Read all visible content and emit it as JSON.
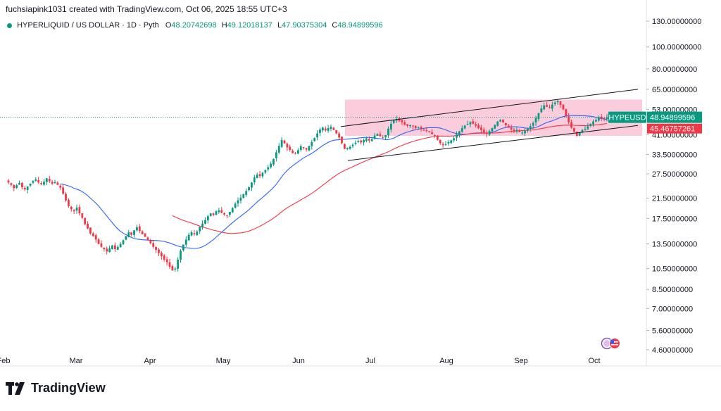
{
  "header": {
    "text": "fuchsiapink1031 created with TradingView.com, Oct 06, 2025 18:55 UTC+3"
  },
  "symbol": {
    "name": "HYPERLIQUID / US DOLLAR · 1D · Pyth",
    "open_label": "O",
    "open": "48.20742698",
    "high_label": "H",
    "high": "49.12018137",
    "low_label": "L",
    "low": "47.90375304",
    "close_label": "C",
    "close": "48.94899596"
  },
  "price_tags": {
    "ticker": "HYPEUSD",
    "last": "48.94899596",
    "ma": "45.46757261"
  },
  "brand": {
    "name": "TradingView"
  },
  "colors": {
    "up": "#089981",
    "down": "#f23645",
    "ma_fast": "#2962ff",
    "ma_slow": "#f23645",
    "zone": "#f8bbd0",
    "channel": "#131722"
  },
  "chart_data": {
    "type": "candlestick",
    "y_scale": "log",
    "ylim": [
      4.6,
      130
    ],
    "y_ticks": [
      "130.00000000",
      "100.00000000",
      "80.00000000",
      "65.00000000",
      "53.00000000",
      "41.00000000",
      "33.50000000",
      "27.50000000",
      "21.50000000",
      "17.50000000",
      "13.50000000",
      "10.50000000",
      "8.50000000",
      "7.00000000",
      "5.60000000",
      "4.60000000"
    ],
    "x_labels": [
      "Feb",
      "Mar",
      "Apr",
      "May",
      "Jun",
      "Jul",
      "Aug",
      "Sep",
      "Oct"
    ],
    "range_zone": {
      "low": 40.5,
      "high": 58.5
    },
    "channel": {
      "upper": [
        [
          0,
          44.5
        ],
        [
          1,
          65
        ]
      ],
      "lower": [
        [
          0,
          31.5
        ],
        [
          1,
          45
        ]
      ]
    },
    "series": [
      {
        "name": "HYPEUSD",
        "closes": [
          25.2,
          24.6,
          23.8,
          24.5,
          25.1,
          24.0,
          23.5,
          24.2,
          24.9,
          25.6,
          26.0,
          25.2,
          24.8,
          25.4,
          26.3,
          25.5,
          24.9,
          25.3,
          24.6,
          23.9,
          22.5,
          21.0,
          19.8,
          19.2,
          18.8,
          19.5,
          18.4,
          17.6,
          16.5,
          15.8,
          15.0,
          14.6,
          14.1,
          13.5,
          13.1,
          12.8,
          12.5,
          12.9,
          13.3,
          12.8,
          13.1,
          13.5,
          14.0,
          14.6,
          15.2,
          14.8,
          15.5,
          16.0,
          15.4,
          14.9,
          14.5,
          14.0,
          13.6,
          13.1,
          12.7,
          12.3,
          11.9,
          11.5,
          11.2,
          10.7,
          10.3,
          10.5,
          11.5,
          12.6,
          13.4,
          14.1,
          14.8,
          15.2,
          14.9,
          15.3,
          16.0,
          16.6,
          17.2,
          17.9,
          18.4,
          18.1,
          18.8,
          19.0,
          18.5,
          18.2,
          18.0,
          18.7,
          19.4,
          20.3,
          21.0,
          21.6,
          22.4,
          23.1,
          24.0,
          25.2,
          26.5,
          27.3,
          26.9,
          27.8,
          28.6,
          29.4,
          30.5,
          32.0,
          34.2,
          36.5,
          38.8,
          37.5,
          36.0,
          35.1,
          34.0,
          33.8,
          35.0,
          36.4,
          35.8,
          35.2,
          36.5,
          38.0,
          39.6,
          41.5,
          43.2,
          44.0,
          42.8,
          43.8,
          44.4,
          43.0,
          41.5,
          39.8,
          37.6,
          35.5,
          35.8,
          36.2,
          37.0,
          37.8,
          38.4,
          37.9,
          38.8,
          39.5,
          38.6,
          39.2,
          40.6,
          41.2,
          40.4,
          39.8,
          40.8,
          43.5,
          45.8,
          47.4,
          48.1,
          47.2,
          46.5,
          45.4,
          44.8,
          45.2,
          44.6,
          43.8,
          44.2,
          43.5,
          42.7,
          42.9,
          42.1,
          41.2,
          40.5,
          38.9,
          37.6,
          36.8,
          37.2,
          38.0,
          38.7,
          39.5,
          41.0,
          42.4,
          43.8,
          44.9,
          45.7,
          46.5,
          45.8,
          44.9,
          43.8,
          42.9,
          42.0,
          41.3,
          42.5,
          43.8,
          45.2,
          46.8,
          47.5,
          46.4,
          45.1,
          44.0,
          43.2,
          42.6,
          43.0,
          42.1,
          41.8,
          42.5,
          43.5,
          44.7,
          46.2,
          48.5,
          51.0,
          53.5,
          55.2,
          54.4,
          53.8,
          55.6,
          56.8,
          57.9,
          55.5,
          53.0,
          49.5,
          46.5,
          44.0,
          42.2,
          40.5,
          41.8,
          42.9,
          43.5,
          44.6,
          45.8,
          46.9,
          47.6,
          48.9,
          48.4,
          48.2,
          48.9
        ]
      },
      {
        "name": "MA fast",
        "values_note": ""
      },
      {
        "name": "MA slow",
        "values_note": ""
      }
    ]
  }
}
